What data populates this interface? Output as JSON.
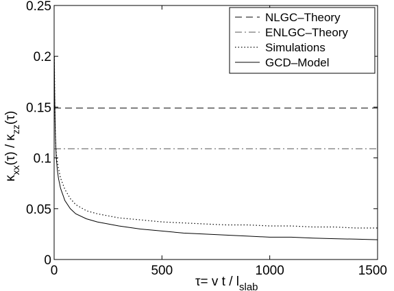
{
  "chart_data": {
    "type": "line",
    "xlim": [
      0,
      1500
    ],
    "ylim": [
      0,
      0.25
    ],
    "x_ticks": [
      0,
      500,
      1000,
      1500
    ],
    "x_tick_labels": [
      "0",
      "500",
      "1000",
      "1500"
    ],
    "y_ticks": [
      0,
      0.05,
      0.1,
      0.15,
      0.2,
      0.25
    ],
    "y_tick_labels": [
      "0",
      "0.05",
      "0.1",
      "0.15",
      "0.2",
      "0.25"
    ],
    "xlabel": {
      "pre": "τ= v t / l",
      "sub": "slab"
    },
    "ylabel": {
      "k1": "κ",
      "s1": "xx",
      "mid": "(τ) / ",
      "k2": "κ",
      "s2": "zz",
      "end": "(τ)"
    },
    "grid": false,
    "legend_position": "top-right",
    "series": [
      {
        "name": "NLGC–Theory",
        "style": "dashed",
        "color": "#000000",
        "x": [
          0,
          1500
        ],
        "y": [
          0.149,
          0.149
        ]
      },
      {
        "name": "ENLGC–Theory",
        "style": "dashdot",
        "color": "#555555",
        "x": [
          0,
          1500
        ],
        "y": [
          0.109,
          0.109
        ]
      },
      {
        "name": "Simulations",
        "style": "dotted",
        "color": "#000000",
        "x": [
          1,
          3,
          5,
          8,
          12,
          20,
          30,
          50,
          75,
          100,
          150,
          200,
          300,
          400,
          500,
          600,
          700,
          800,
          900,
          1000,
          1100,
          1200,
          1300,
          1400,
          1500
        ],
        "y": [
          0.2,
          0.16,
          0.13,
          0.11,
          0.1,
          0.09,
          0.08,
          0.069,
          0.06,
          0.054,
          0.048,
          0.045,
          0.041,
          0.039,
          0.037,
          0.036,
          0.035,
          0.034,
          0.034,
          0.033,
          0.033,
          0.032,
          0.032,
          0.031,
          0.031
        ]
      },
      {
        "name": "GCD–Model",
        "style": "solid",
        "color": "#000000",
        "x": [
          1,
          2,
          4,
          6,
          10,
          15,
          20,
          30,
          50,
          75,
          100,
          150,
          200,
          300,
          400,
          500,
          600,
          700,
          800,
          900,
          1000,
          1100,
          1200,
          1300,
          1400,
          1500
        ],
        "y": [
          0.2,
          0.17,
          0.14,
          0.12,
          0.1,
          0.088,
          0.08,
          0.07,
          0.058,
          0.05,
          0.045,
          0.04,
          0.037,
          0.033,
          0.03,
          0.028,
          0.026,
          0.025,
          0.024,
          0.023,
          0.022,
          0.022,
          0.021,
          0.0205,
          0.02,
          0.0195
        ]
      }
    ]
  }
}
